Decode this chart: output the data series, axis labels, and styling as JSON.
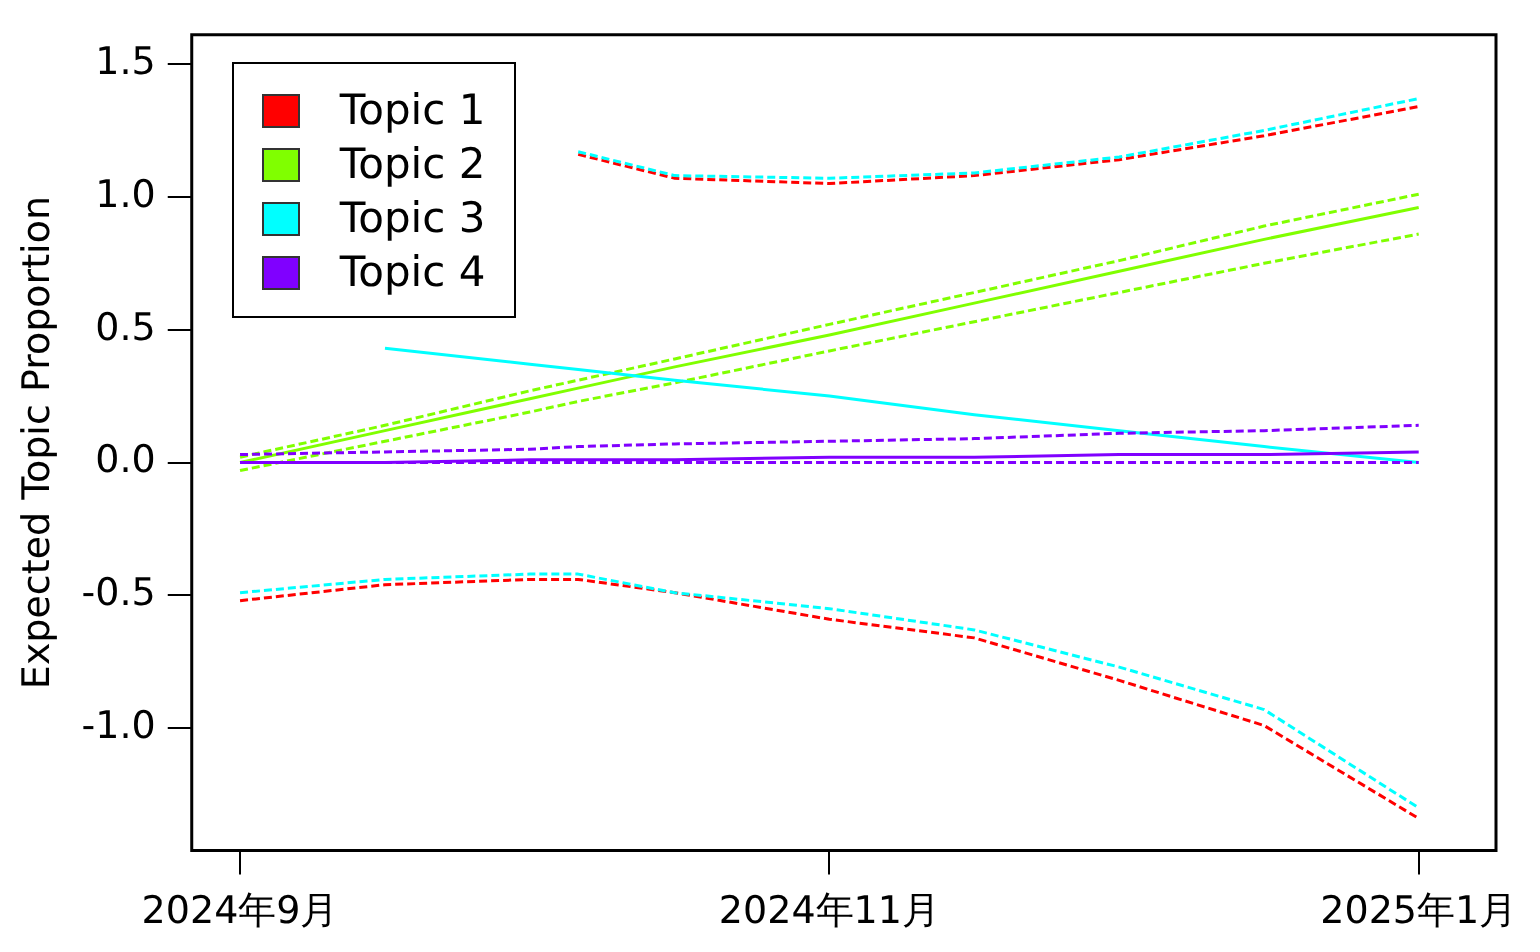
{
  "chart_data": {
    "type": "line",
    "ylabel": "Expected Topic Proportion",
    "x": [
      "2024-09-01",
      "2024-09-16",
      "2024-10-01",
      "2024-10-06",
      "2024-10-16",
      "2024-11-01",
      "2024-11-16",
      "2024-12-01",
      "2024-12-16",
      "2025-01-01"
    ],
    "series": [
      {
        "name": "Topic 1",
        "color": "#ff0000",
        "values": [
          null,
          null,
          null,
          null,
          null,
          null,
          null,
          null,
          null,
          null
        ]
      },
      {
        "color": "#ff0000",
        "line_style": "dashed",
        "values": [
          -0.52,
          -0.46,
          -0.44,
          -0.44,
          -0.49,
          -0.59,
          -0.66,
          -0.82,
          -0.99,
          -1.34
        ]
      },
      {
        "color": "#ff0000",
        "line_style": "dashed",
        "values": [
          null,
          null,
          null,
          1.16,
          1.07,
          1.05,
          1.08,
          1.14,
          1.23,
          1.34
        ]
      },
      {
        "name": "Topic 2",
        "color": "#80ff00",
        "values": [
          0.0,
          0.12,
          0.24,
          0.28,
          0.36,
          0.48,
          0.6,
          0.72,
          0.84,
          0.96
        ]
      },
      {
        "color": "#80ff00",
        "line_style": "dashed",
        "values": [
          -0.03,
          0.08,
          0.19,
          0.23,
          0.3,
          0.42,
          0.53,
          0.64,
          0.75,
          0.86
        ]
      },
      {
        "color": "#80ff00",
        "line_style": "dashed",
        "values": [
          0.02,
          0.14,
          0.27,
          0.31,
          0.39,
          0.52,
          0.64,
          0.76,
          0.89,
          1.01
        ]
      },
      {
        "name": "Topic 3",
        "color": "#00ffff",
        "values": [
          null,
          0.43,
          0.37,
          0.35,
          0.31,
          0.25,
          0.18,
          0.12,
          0.06,
          0.0
        ]
      },
      {
        "color": "#00ffff",
        "line_style": "dashed",
        "values": [
          -0.49,
          -0.44,
          -0.42,
          -0.42,
          -0.49,
          -0.55,
          -0.63,
          -0.77,
          -0.93,
          -1.3
        ]
      },
      {
        "color": "#00ffff",
        "line_style": "dashed",
        "values": [
          null,
          null,
          null,
          1.17,
          1.08,
          1.07,
          1.09,
          1.15,
          1.25,
          1.37
        ]
      },
      {
        "name": "Topic 4",
        "color": "#8000ff",
        "values": [
          0.0,
          0.0,
          0.01,
          0.01,
          0.01,
          0.02,
          0.02,
          0.03,
          0.03,
          0.04
        ]
      },
      {
        "color": "#8000ff",
        "line_style": "dashed",
        "values": [
          0.0,
          0.0,
          0.0,
          0.0,
          0.0,
          0.0,
          0.0,
          0.0,
          0.0,
          0.0
        ]
      },
      {
        "color": "#8000ff",
        "line_style": "dashed",
        "values": [
          0.03,
          0.04,
          0.05,
          0.06,
          0.07,
          0.08,
          0.09,
          0.11,
          0.12,
          0.14
        ]
      }
    ],
    "xlim": [
      "2024-08-27",
      "2025-01-09"
    ],
    "xticks": [
      {
        "value": "2024-09-01",
        "label": "2024年9月"
      },
      {
        "value": "2024-11-01",
        "label": "2024年11月"
      },
      {
        "value": "2025-01-01",
        "label": "2025年1月"
      }
    ],
    "ylim": [
      -1.46,
      1.61
    ],
    "yticks": [
      {
        "value": -1,
        "label": "-1.0"
      },
      {
        "value": -0.5,
        "label": "-0.5"
      },
      {
        "value": 0,
        "label": "0.0"
      },
      {
        "value": 0.5,
        "label": "0.5"
      },
      {
        "value": 1,
        "label": "1.0"
      },
      {
        "value": 1.5,
        "label": "1.5"
      }
    ],
    "grid": false,
    "legend": "top left",
    "line_style": "solid",
    "marker": "none"
  }
}
